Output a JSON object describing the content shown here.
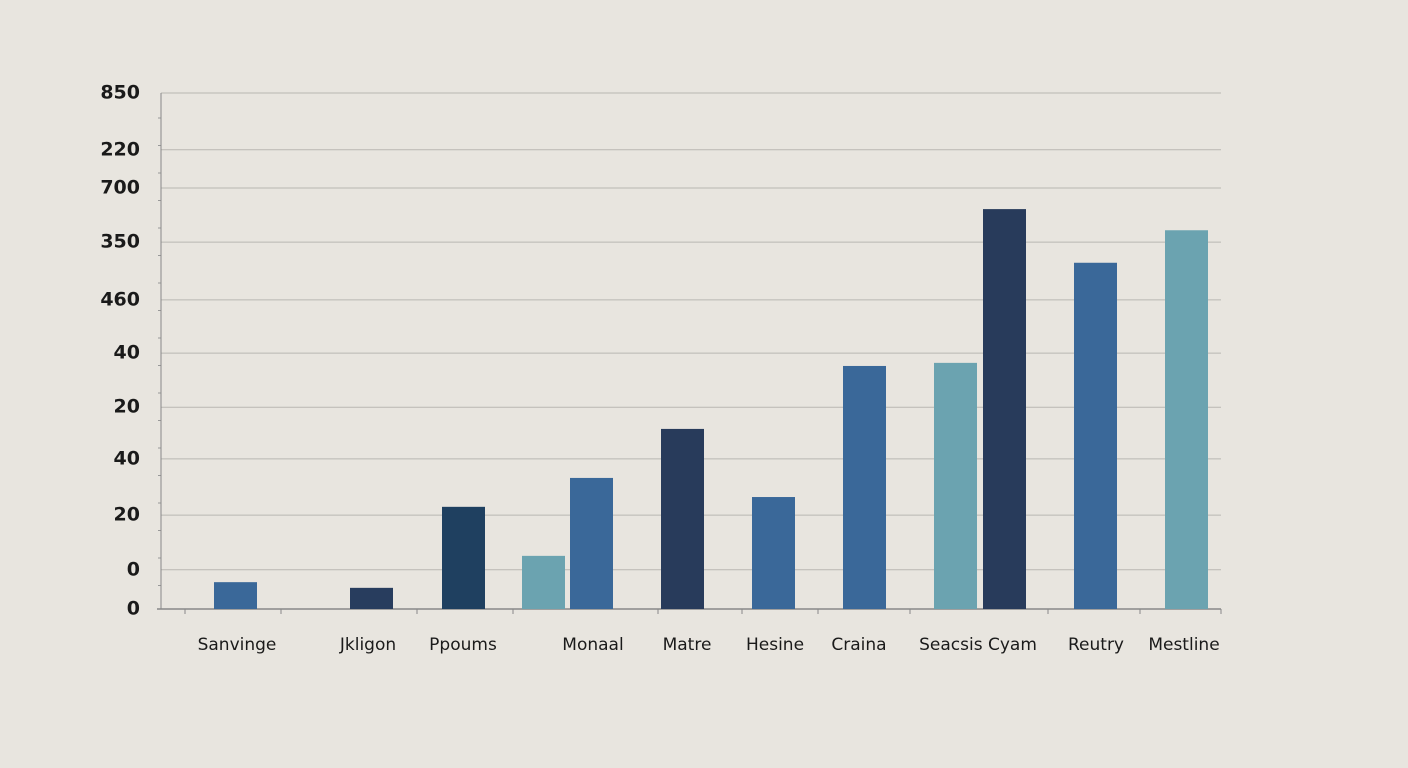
{
  "chart_data": {
    "type": "bar",
    "categories": [
      "Sanvinge",
      "Jkligon",
      "Ppoums",
      "Monaal",
      "Matre",
      "Hesine",
      "Craina",
      "Seacsis Cyam",
      "Reutry",
      "Mestline"
    ],
    "series": [
      {
        "colors": [
          "#3a6899",
          "#283d5e",
          "#1f4060",
          "#6ba3b0",
          "#283b5b",
          "#3a6899",
          "#3a6899",
          "#6ba3b0",
          "#3a6899",
          "#6ba3b0"
        ],
        "values": [
          5.2,
          4.1,
          19.8,
          10.3,
          34.9,
          21.7,
          47.1,
          47.7,
          67.1,
          73.4
        ]
      },
      {
        "colors": [
          null,
          null,
          null,
          "#3a6899",
          null,
          null,
          null,
          "#283b5b",
          null,
          null
        ],
        "values": [
          null,
          null,
          null,
          25.4,
          null,
          null,
          null,
          77.5,
          null,
          null
        ]
      }
    ],
    "ylim": [
      0,
      100
    ],
    "yticks": [
      0,
      {
        "value": 7.6,
        "label": "0"
      },
      {
        "value": 18.2,
        "label": "20"
      },
      {
        "value": 29.1,
        "label": "40"
      },
      {
        "value": 39.1,
        "label": "20"
      },
      {
        "value": 49.6,
        "label": "40"
      },
      {
        "value": 59.9,
        "label": "460"
      },
      {
        "value": 71.1,
        "label": "350"
      },
      {
        "value": 81.6,
        "label": "700"
      },
      {
        "value": 89.0,
        "label": "220"
      },
      {
        "value": 100,
        "label": "850"
      }
    ],
    "grid": true
  }
}
